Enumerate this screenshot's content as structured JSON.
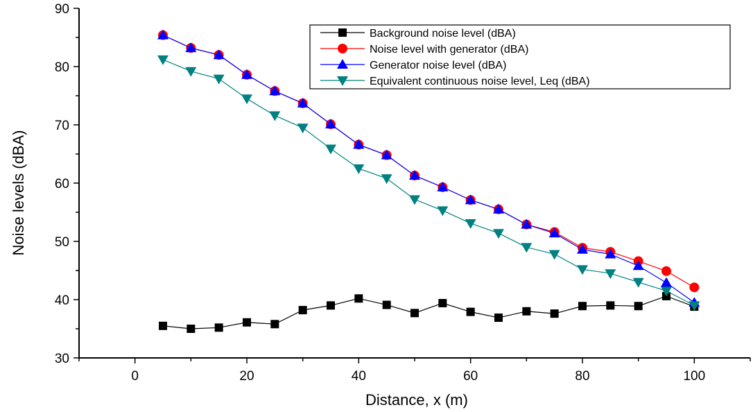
{
  "chart_data": {
    "type": "line",
    "title": "",
    "xlabel": "Distance, x (m)",
    "ylabel": "Noise levels (dBA)",
    "xlim": [
      -10,
      110
    ],
    "ylim": [
      30,
      90
    ],
    "xticks": [
      0,
      20,
      40,
      60,
      80,
      100
    ],
    "yticks": [
      30,
      40,
      50,
      60,
      70,
      80,
      90
    ],
    "grid": false,
    "legend_position": "top-right",
    "x": [
      5,
      10,
      15,
      20,
      25,
      30,
      35,
      40,
      45,
      50,
      55,
      60,
      65,
      70,
      75,
      80,
      85,
      90,
      95,
      100
    ],
    "series": [
      {
        "name": "Background noise level (dBA)",
        "marker": "square",
        "color": "#000000",
        "values": [
          35.5,
          35.0,
          35.2,
          36.1,
          35.8,
          38.2,
          39.0,
          40.2,
          39.1,
          37.7,
          39.4,
          37.9,
          36.9,
          38.0,
          37.6,
          38.9,
          39.0,
          38.9,
          40.6,
          38.8
        ]
      },
      {
        "name": "Noise level with generator (dBA)",
        "marker": "circle",
        "color": "#ff0000",
        "values": [
          85.4,
          83.2,
          82.0,
          78.6,
          75.8,
          73.7,
          70.1,
          66.6,
          64.8,
          61.3,
          59.3,
          57.1,
          55.5,
          52.9,
          51.6,
          48.9,
          48.2,
          46.6,
          44.9,
          42.1
        ]
      },
      {
        "name": "Generator noise level (dBA)",
        "marker": "triangle-up",
        "color": "#0000ff",
        "values": [
          85.4,
          83.2,
          82.0,
          78.6,
          75.8,
          73.7,
          70.1,
          66.6,
          64.8,
          61.3,
          59.3,
          57.1,
          55.5,
          52.9,
          51.4,
          48.6,
          47.8,
          45.8,
          42.9,
          39.5
        ]
      },
      {
        "name": "Equivalent continuous noise level,  Leq (dBA)",
        "marker": "triangle-down",
        "color": "#008080",
        "values": [
          81.2,
          79.2,
          77.9,
          74.5,
          71.6,
          69.5,
          65.9,
          62.5,
          60.8,
          57.2,
          55.3,
          53.1,
          51.4,
          49.0,
          47.8,
          45.2,
          44.5,
          43.0,
          41.5,
          39.0
        ]
      }
    ]
  }
}
